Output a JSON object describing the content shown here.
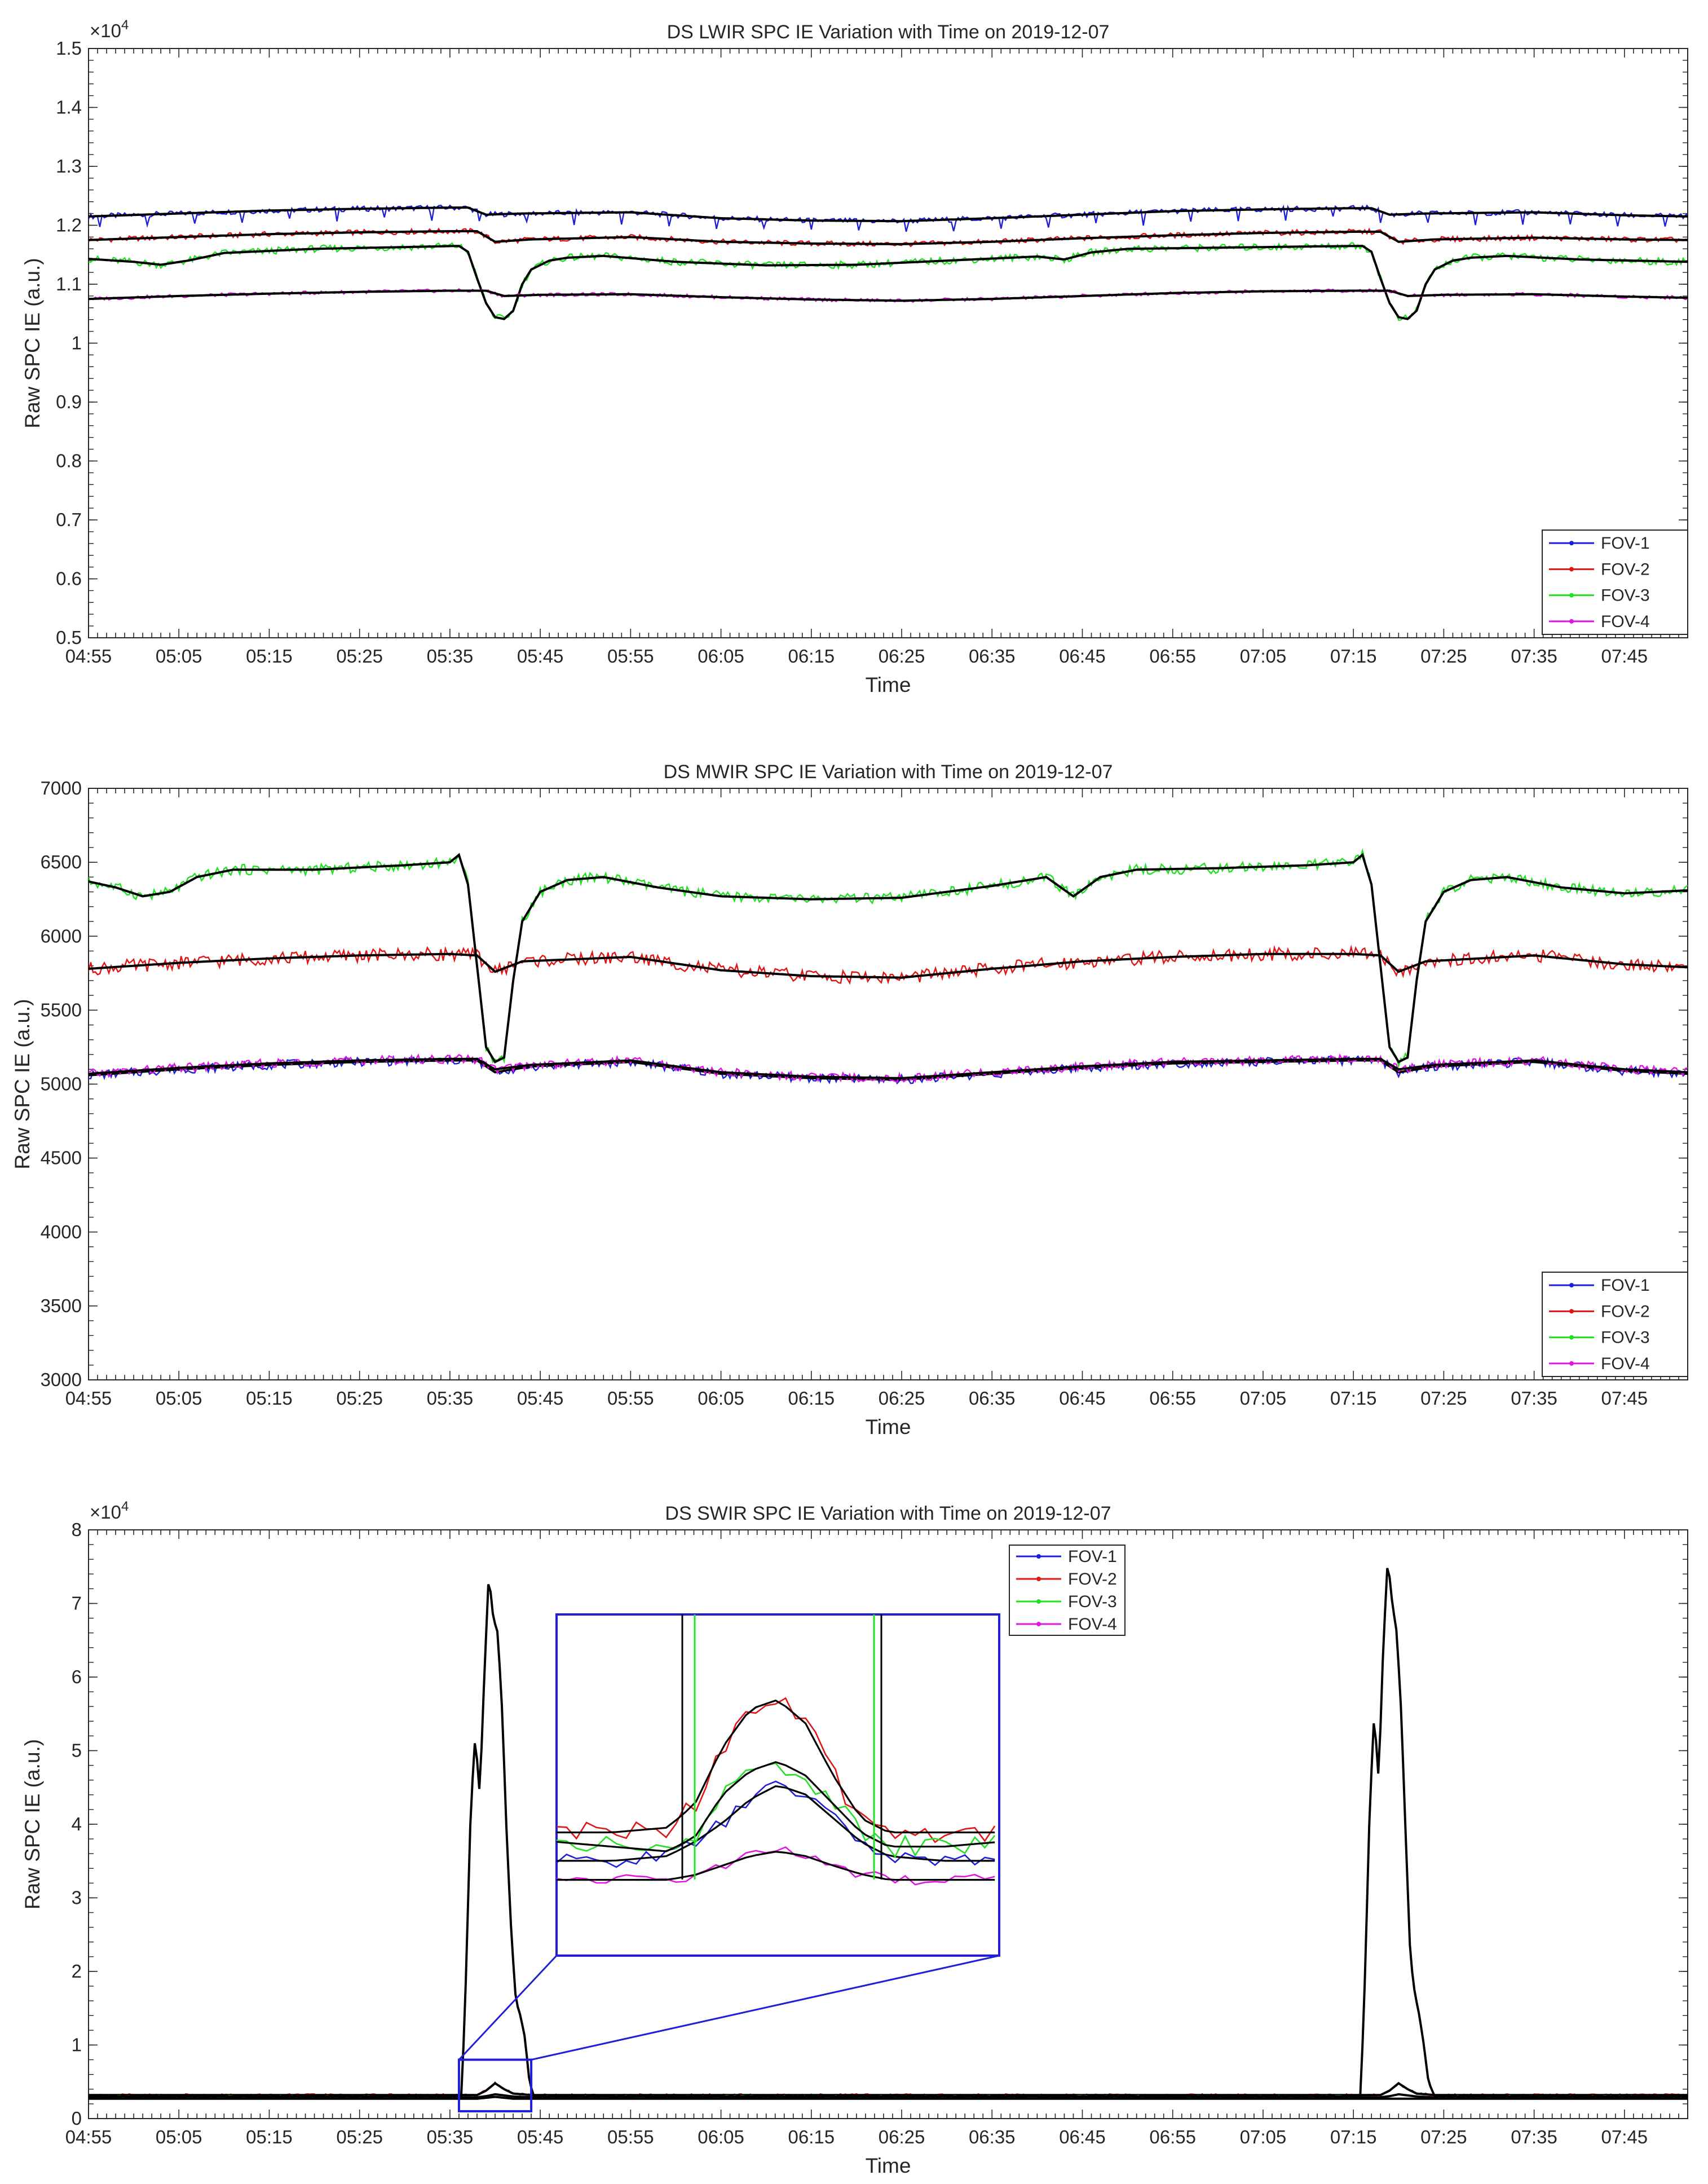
{
  "chart_data": [
    {
      "type": "line",
      "id": "lwir",
      "title": "DS LWIR SPC IE Variation with Time on 2019-12-07",
      "xlabel": "Time",
      "ylabel": "Raw SPC IE (a.u.)",
      "y_multiplier_label": "×10",
      "y_multiplier_exp": "4",
      "ylim": [
        5000,
        15000
      ],
      "yticks": [
        5000,
        6000,
        7000,
        8000,
        9000,
        10000,
        11000,
        12000,
        13000,
        14000,
        15000
      ],
      "ytick_labels": [
        "0.5",
        "0.6",
        "0.7",
        "0.8",
        "0.9",
        "1",
        "1.1",
        "1.2",
        "1.3",
        "1.4",
        "1.5"
      ],
      "xlim_minutes": [
        295,
        472
      ],
      "xticks_minutes": [
        295,
        305,
        315,
        325,
        335,
        345,
        355,
        365,
        375,
        385,
        395,
        405,
        415,
        425,
        435,
        445,
        455,
        465
      ],
      "xtick_labels": [
        "04:55",
        "05:05",
        "05:15",
        "05:25",
        "05:35",
        "05:45",
        "05:55",
        "06:05",
        "06:15",
        "06:25",
        "06:35",
        "06:45",
        "06:55",
        "07:05",
        "07:15",
        "07:25",
        "07:35",
        "07:45"
      ],
      "legend_position": "bottom-right",
      "series": [
        {
          "name": "FOV-1",
          "color": "#1f1fd8",
          "x": [
            295,
            305,
            315,
            325,
            335,
            337,
            339,
            343,
            355,
            365,
            375,
            385,
            395,
            405,
            415,
            425,
            435,
            437,
            439,
            443,
            455,
            465,
            472
          ],
          "y": [
            12150,
            12200,
            12250,
            12280,
            12300,
            12300,
            12180,
            12200,
            12220,
            12120,
            12080,
            12070,
            12120,
            12180,
            12240,
            12270,
            12290,
            12290,
            12180,
            12200,
            12220,
            12170,
            12150
          ]
        },
        {
          "name": "FOV-2",
          "color": "#e01515",
          "x": [
            295,
            305,
            315,
            325,
            335,
            338,
            340,
            344,
            355,
            365,
            375,
            385,
            395,
            405,
            415,
            425,
            435,
            438,
            440,
            444,
            455,
            465,
            472
          ],
          "y": [
            11750,
            11800,
            11850,
            11880,
            11900,
            11900,
            11720,
            11760,
            11800,
            11720,
            11690,
            11680,
            11720,
            11780,
            11830,
            11870,
            11890,
            11890,
            11720,
            11760,
            11790,
            11760,
            11750
          ]
        },
        {
          "name": "FOV-3",
          "color": "#22e022",
          "x": [
            295,
            300,
            303,
            306,
            310,
            320,
            330,
            336,
            337,
            338,
            339,
            340,
            341,
            342,
            343,
            344,
            346,
            348,
            352,
            360,
            370,
            380,
            390,
            400,
            403,
            406,
            410,
            420,
            430,
            436,
            437,
            438,
            439,
            440,
            441,
            442,
            443,
            444,
            446,
            448,
            452,
            460,
            472
          ],
          "y": [
            11430,
            11380,
            11330,
            11400,
            11530,
            11600,
            11630,
            11650,
            11550,
            11100,
            10680,
            10440,
            10410,
            10550,
            11000,
            11250,
            11400,
            11450,
            11480,
            11380,
            11320,
            11330,
            11400,
            11470,
            11420,
            11540,
            11600,
            11620,
            11640,
            11650,
            11550,
            11100,
            10680,
            10440,
            10410,
            10550,
            11000,
            11250,
            11400,
            11450,
            11480,
            11420,
            11380
          ]
        },
        {
          "name": "FOV-4",
          "color": "#e015e0",
          "x": [
            295,
            305,
            315,
            325,
            335,
            339,
            341,
            345,
            355,
            365,
            375,
            385,
            395,
            405,
            415,
            425,
            435,
            439,
            441,
            445,
            455,
            465,
            472
          ],
          "y": [
            10750,
            10800,
            10840,
            10870,
            10890,
            10890,
            10800,
            10820,
            10830,
            10780,
            10740,
            10720,
            10750,
            10800,
            10850,
            10880,
            10890,
            10890,
            10800,
            10820,
            10830,
            10790,
            10770
          ]
        }
      ],
      "legend": [
        "FOV-1",
        "FOV-2",
        "FOV-3",
        "FOV-4"
      ]
    },
    {
      "type": "line",
      "id": "mwir",
      "title": "DS MWIR SPC IE Variation with Time on 2019-12-07",
      "xlabel": "Time",
      "ylabel": "Raw SPC IE (a.u.)",
      "ylim": [
        3000,
        7000
      ],
      "yticks": [
        3000,
        3500,
        4000,
        4500,
        5000,
        5500,
        6000,
        6500,
        7000
      ],
      "ytick_labels": [
        "3000",
        "3500",
        "4000",
        "4500",
        "5000",
        "5500",
        "6000",
        "6500",
        "7000"
      ],
      "xlim_minutes": [
        295,
        472
      ],
      "xticks_minutes": [
        295,
        305,
        315,
        325,
        335,
        345,
        355,
        365,
        375,
        385,
        395,
        405,
        415,
        425,
        435,
        445,
        455,
        465
      ],
      "xtick_labels": [
        "04:55",
        "05:05",
        "05:15",
        "05:25",
        "05:35",
        "05:45",
        "05:55",
        "06:05",
        "06:15",
        "06:25",
        "06:35",
        "06:45",
        "06:55",
        "07:05",
        "07:15",
        "07:25",
        "07:35",
        "07:45"
      ],
      "legend_position": "bottom-right",
      "series": [
        {
          "name": "FOV-1",
          "color": "#1f1fd8",
          "x": [
            295,
            305,
            315,
            325,
            335,
            338,
            340,
            344,
            355,
            365,
            375,
            385,
            395,
            405,
            415,
            425,
            435,
            438,
            440,
            444,
            455,
            465,
            472
          ],
          "y": [
            5060,
            5100,
            5130,
            5150,
            5160,
            5160,
            5080,
            5120,
            5150,
            5070,
            5040,
            5030,
            5070,
            5110,
            5140,
            5150,
            5160,
            5160,
            5080,
            5120,
            5150,
            5090,
            5070
          ]
        },
        {
          "name": "FOV-2",
          "color": "#e01515",
          "x": [
            295,
            305,
            315,
            325,
            335,
            338,
            340,
            343,
            355,
            365,
            375,
            385,
            395,
            405,
            415,
            425,
            435,
            438,
            440,
            443,
            455,
            465,
            472
          ],
          "y": [
            5780,
            5820,
            5850,
            5870,
            5880,
            5870,
            5760,
            5830,
            5860,
            5770,
            5730,
            5720,
            5780,
            5830,
            5860,
            5880,
            5880,
            5870,
            5760,
            5830,
            5870,
            5810,
            5790
          ]
        },
        {
          "name": "FOV-3",
          "color": "#22e022",
          "x": [
            295,
            298,
            301,
            304,
            307,
            311,
            320,
            330,
            335,
            336,
            337,
            338,
            339,
            340,
            341,
            342,
            343,
            345,
            348,
            352,
            358,
            365,
            375,
            385,
            395,
            401,
            404,
            407,
            411,
            420,
            430,
            435,
            436,
            437,
            438,
            439,
            440,
            441,
            442,
            443,
            445,
            448,
            452,
            458,
            465,
            472
          ],
          "y": [
            6370,
            6330,
            6270,
            6300,
            6400,
            6450,
            6450,
            6480,
            6500,
            6550,
            6350,
            5800,
            5250,
            5150,
            5180,
            5700,
            6100,
            6300,
            6380,
            6400,
            6330,
            6270,
            6250,
            6260,
            6340,
            6400,
            6270,
            6400,
            6450,
            6460,
            6480,
            6500,
            6550,
            6350,
            5800,
            5250,
            5150,
            5180,
            5700,
            6100,
            6300,
            6380,
            6400,
            6330,
            6290,
            6310
          ]
        },
        {
          "name": "FOV-4",
          "color": "#e015e0",
          "x": [
            295,
            305,
            315,
            325,
            335,
            338,
            340,
            344,
            355,
            365,
            375,
            385,
            395,
            405,
            415,
            425,
            435,
            438,
            440,
            444,
            455,
            465,
            472
          ],
          "y": [
            5070,
            5110,
            5140,
            5160,
            5170,
            5170,
            5100,
            5130,
            5160,
            5080,
            5050,
            5040,
            5080,
            5120,
            5150,
            5160,
            5170,
            5170,
            5100,
            5130,
            5160,
            5100,
            5080
          ]
        }
      ],
      "legend": [
        "FOV-1",
        "FOV-2",
        "FOV-3",
        "FOV-4"
      ]
    },
    {
      "type": "line",
      "id": "swir",
      "title": "DS SWIR SPC IE Variation with Time on 2019-12-07",
      "xlabel": "Time",
      "ylabel": "Raw SPC IE (a.u.)",
      "y_multiplier_label": "×10",
      "y_multiplier_exp": "4",
      "ylim": [
        0,
        80000
      ],
      "yticks": [
        0,
        10000,
        20000,
        30000,
        40000,
        50000,
        60000,
        70000,
        80000
      ],
      "ytick_labels": [
        "0",
        "1",
        "2",
        "3",
        "4",
        "5",
        "6",
        "7",
        "8"
      ],
      "xlim_minutes": [
        295,
        472
      ],
      "xticks_minutes": [
        295,
        305,
        315,
        325,
        335,
        345,
        355,
        365,
        375,
        385,
        395,
        405,
        415,
        425,
        435,
        445,
        455,
        465
      ],
      "xtick_labels": [
        "04:55",
        "05:05",
        "05:15",
        "05:25",
        "05:35",
        "05:45",
        "05:55",
        "06:05",
        "06:15",
        "06:25",
        "06:35",
        "06:45",
        "06:55",
        "07:05",
        "07:15",
        "07:25",
        "07:35",
        "07:45"
      ],
      "legend_position": "top-center",
      "series": [
        {
          "name": "FOV-1",
          "color": "#1f1fd8",
          "x": [
            295,
            338,
            339,
            340,
            341,
            342,
            344,
            435,
            438,
            439,
            440,
            441,
            442,
            444,
            472
          ],
          "y": [
            2900,
            2900,
            3050,
            3300,
            3150,
            3000,
            2900,
            2900,
            2900,
            3050,
            3300,
            3150,
            3000,
            2900,
            2900
          ]
        },
        {
          "name": "FOV-2",
          "color": "#e01515",
          "x": [
            295,
            338,
            339,
            340,
            341,
            342,
            344,
            435,
            438,
            439,
            440,
            441,
            442,
            444,
            472
          ],
          "y": [
            3200,
            3200,
            3800,
            4800,
            4000,
            3400,
            3200,
            3200,
            3200,
            3800,
            4800,
            4000,
            3400,
            3200,
            3200
          ]
        },
        {
          "name": "FOV-3",
          "color": "#22e022",
          "x": [
            295,
            336.3,
            336.8,
            337.3,
            337.8,
            338.3,
            338.8,
            339.3,
            339.8,
            340.3,
            340.8,
            341.3,
            341.8,
            342.3,
            342.8,
            343.3,
            343.8,
            344.3,
            435,
            435.8,
            436.3,
            436.8,
            437.3,
            437.8,
            438.3,
            438.8,
            439.3,
            439.8,
            440.3,
            440.8,
            441.3,
            441.8,
            442.3,
            442.8,
            443.3,
            444,
            472
          ],
          "y": [
            3000,
            3000,
            20000,
            42000,
            52000,
            44000,
            60000,
            74000,
            68000,
            66000,
            55000,
            38000,
            25000,
            16000,
            14000,
            11000,
            5000,
            3000,
            3000,
            3000,
            20000,
            42000,
            55000,
            46000,
            64000,
            76000,
            70000,
            66000,
            55000,
            38000,
            22000,
            17000,
            14000,
            10000,
            5000,
            3000,
            3000
          ]
        },
        {
          "name": "FOV-4",
          "color": "#e015e0",
          "x": [
            295,
            338,
            340,
            342,
            472
          ],
          "y": [
            2700,
            2700,
            2950,
            2700,
            2700
          ]
        }
      ],
      "smooth_series_color": "#000000",
      "legend": [
        "FOV-1",
        "FOV-2",
        "FOV-3",
        "FOV-4"
      ],
      "inset": {
        "x_range_minutes": [
          336,
          344
        ],
        "y_range": [
          1000,
          8000
        ],
        "series": [
          {
            "name": "FOV-1",
            "color": "#1f1fd8",
            "x": [
              336,
              337,
              338,
              338.5,
              339,
              339.5,
              340,
              340.5,
              341,
              341.5,
              342,
              343,
              344
            ],
            "y": [
              2900,
              2900,
              2950,
              3100,
              3300,
              3550,
              3700,
              3600,
              3350,
              3100,
              2950,
              2900,
              2900
            ]
          },
          {
            "name": "FOV-2",
            "color": "#e01515",
            "x": [
              336,
              337,
              338,
              338.5,
              339,
              339.5,
              340,
              340.5,
              341,
              341.5,
              342,
              343,
              344
            ],
            "y": [
              3200,
              3200,
              3250,
              3500,
              4100,
              4500,
              4600,
              4350,
              3800,
              3350,
              3200,
              3200,
              3200
            ]
          },
          {
            "name": "FOV-3",
            "color": "#22e022",
            "x": [
              336,
              337,
              338,
              338.5,
              339,
              339.5,
              340,
              340.5,
              341,
              341.5,
              342,
              343,
              344
            ],
            "y": [
              3100,
              3050,
              3000,
              3150,
              3600,
              3850,
              3950,
              3800,
              3500,
              3200,
              3050,
              3050,
              3100
            ]
          },
          {
            "name": "FOV-4",
            "color": "#e015e0",
            "x": [
              336,
              337,
              338,
              338.5,
              339,
              339.5,
              340,
              340.5,
              341,
              341.5,
              342,
              343,
              344
            ],
            "y": [
              2700,
              2700,
              2700,
              2750,
              2850,
              2950,
              3000,
              2950,
              2850,
              2760,
              2700,
              2700,
              2700
            ]
          }
        ]
      }
    }
  ]
}
